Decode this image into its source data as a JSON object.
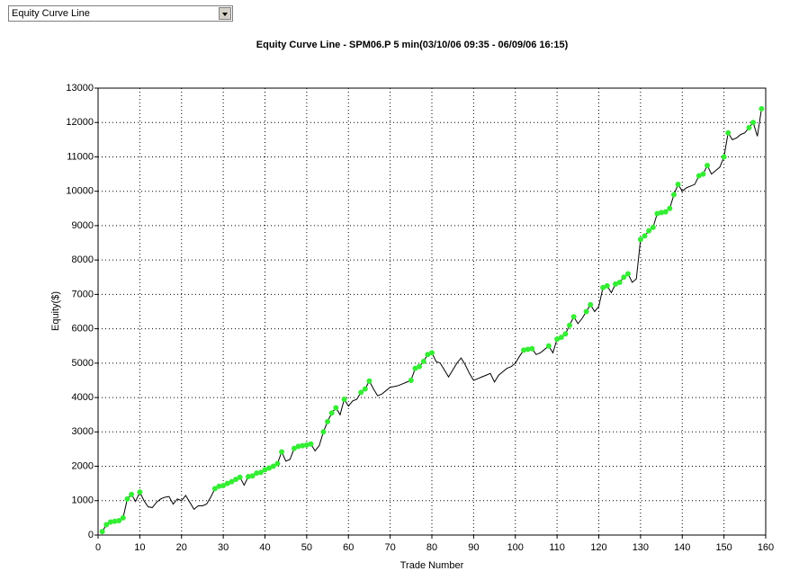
{
  "dropdown": {
    "selected": "Equity Curve Line"
  },
  "chart_data": {
    "type": "line",
    "title": "Equity Curve Line - SPM06.P 5 min(03/10/06 09:35 - 06/09/06 16:15)",
    "x_label": "Trade Number",
    "y_label": "Equity($)",
    "xlim": [
      0,
      160
    ],
    "xticks": [
      0,
      10,
      20,
      30,
      40,
      50,
      60,
      70,
      80,
      90,
      100,
      110,
      120,
      130,
      140,
      150,
      160
    ],
    "ylim": [
      0,
      13000
    ],
    "yticks": [
      0,
      1000,
      2000,
      3000,
      4000,
      5000,
      6000,
      7000,
      8000,
      9000,
      10000,
      11000,
      12000,
      13000
    ],
    "grid": true,
    "high_marker_color": "#33ee33",
    "x": [
      1,
      2,
      3,
      4,
      5,
      6,
      7,
      8,
      9,
      10,
      11,
      12,
      13,
      14,
      15,
      16,
      17,
      18,
      19,
      20,
      21,
      22,
      23,
      24,
      25,
      26,
      27,
      28,
      29,
      30,
      31,
      32,
      33,
      34,
      35,
      36,
      37,
      38,
      39,
      40,
      41,
      42,
      43,
      44,
      45,
      46,
      47,
      48,
      49,
      50,
      51,
      52,
      53,
      54,
      55,
      56,
      57,
      58,
      59,
      60,
      61,
      62,
      63,
      64,
      65,
      66,
      67,
      68,
      69,
      70,
      71,
      72,
      73,
      74,
      75,
      76,
      77,
      78,
      79,
      80,
      81,
      82,
      83,
      84,
      85,
      86,
      87,
      88,
      89,
      90,
      91,
      92,
      93,
      94,
      95,
      96,
      97,
      98,
      99,
      100,
      101,
      102,
      103,
      104,
      105,
      106,
      107,
      108,
      109,
      110,
      111,
      112,
      113,
      114,
      115,
      116,
      117,
      118,
      119,
      120,
      121,
      122,
      123,
      124,
      125,
      126,
      127,
      128,
      129,
      130,
      131,
      132,
      133,
      134,
      135,
      136,
      137,
      138,
      139,
      140,
      141,
      142,
      143,
      144,
      145,
      146,
      147,
      148,
      149,
      150,
      151,
      152,
      153,
      154,
      155,
      156,
      157,
      158,
      159
    ],
    "series": [
      {
        "name": "Equity",
        "color": "#000000",
        "values": [
          100,
          300,
          380,
          400,
          420,
          500,
          1050,
          1180,
          980,
          1250,
          1000,
          820,
          800,
          950,
          1050,
          1100,
          1120,
          900,
          1050,
          1000,
          1150,
          950,
          750,
          850,
          850,
          900,
          1100,
          1350,
          1420,
          1440,
          1500,
          1550,
          1620,
          1680,
          1450,
          1700,
          1720,
          1800,
          1820,
          1900,
          1950,
          2000,
          2080,
          2420,
          2150,
          2200,
          2520,
          2580,
          2600,
          2620,
          2650,
          2450,
          2600,
          3000,
          3300,
          3550,
          3700,
          3500,
          3950,
          3750,
          3900,
          3950,
          4150,
          4250,
          4480,
          4250,
          4050,
          4100,
          4200,
          4300,
          4320,
          4350,
          4400,
          4450,
          4500,
          4850,
          4900,
          5050,
          5250,
          5300,
          5050,
          5000,
          4800,
          4600,
          4800,
          5000,
          5150,
          4950,
          4700,
          4500,
          4550,
          4600,
          4650,
          4700,
          4450,
          4650,
          4750,
          4850,
          4900,
          5000,
          5200,
          5380,
          5400,
          5420,
          5250,
          5300,
          5400,
          5500,
          5300,
          5700,
          5750,
          5850,
          6100,
          6350,
          6150,
          6300,
          6500,
          6700,
          6500,
          6650,
          7200,
          7250,
          7050,
          7300,
          7350,
          7500,
          7600,
          7350,
          7450,
          8600,
          8700,
          8850,
          8950,
          9350,
          9380,
          9400,
          9500,
          9900,
          10200,
          10000,
          10100,
          10150,
          10200,
          10450,
          10500,
          10750,
          10500,
          10600,
          10700,
          11000,
          11700,
          11500,
          11550,
          11650,
          11700,
          11850,
          12000,
          11600,
          12400
        ]
      }
    ]
  }
}
